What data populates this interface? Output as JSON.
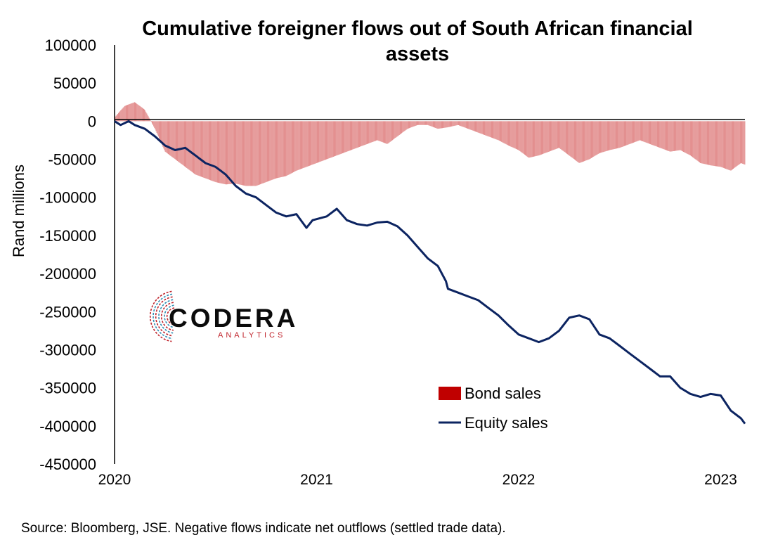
{
  "colors": {
    "bond": "#c00000",
    "equity": "#0c2461",
    "axis": "#000000",
    "logo_red": "#c0232b",
    "logo_blue": "#2f8fb5"
  },
  "logo": {
    "name": "CODERA",
    "tagline": "ANALYTICS"
  },
  "source_note": "Source: Bloomberg, JSE. Negative flows indicate net outflows (settled trade data).",
  "chart_data": {
    "type": "line",
    "title": "Cumulative foreigner flows out of South African financial assets",
    "ylabel": "Rand millions",
    "xlabel": "",
    "ylim": [
      -450000,
      100000
    ],
    "yticks": [
      100000,
      50000,
      0,
      -50000,
      -100000,
      -150000,
      -200000,
      -250000,
      -300000,
      -350000,
      -400000,
      -450000
    ],
    "xlim": [
      2020.0,
      2023.12
    ],
    "xticks": [
      {
        "value": 2020,
        "label": "2020"
      },
      {
        "value": 2021,
        "label": "2021"
      },
      {
        "value": 2022,
        "label": "2022"
      },
      {
        "value": 2023,
        "label": "2023"
      }
    ],
    "legend_position": "bottom-right",
    "series": [
      {
        "name": "Bond sales",
        "kind": "bar",
        "x": [
          2020.0,
          2020.05,
          2020.1,
          2020.15,
          2020.2,
          2020.25,
          2020.3,
          2020.35,
          2020.4,
          2020.45,
          2020.5,
          2020.55,
          2020.6,
          2020.65,
          2020.7,
          2020.75,
          2020.8,
          2020.85,
          2020.9,
          2020.95,
          2021.0,
          2021.05,
          2021.1,
          2021.15,
          2021.2,
          2021.25,
          2021.3,
          2021.35,
          2021.4,
          2021.45,
          2021.5,
          2021.55,
          2021.6,
          2021.65,
          2021.7,
          2021.75,
          2021.8,
          2021.85,
          2021.9,
          2021.95,
          2022.0,
          2022.05,
          2022.1,
          2022.15,
          2022.2,
          2022.25,
          2022.3,
          2022.35,
          2022.4,
          2022.45,
          2022.5,
          2022.55,
          2022.6,
          2022.65,
          2022.7,
          2022.75,
          2022.8,
          2022.85,
          2022.9,
          2022.95,
          2023.0,
          2023.05,
          2023.1,
          2023.12
        ],
        "values": [
          5000,
          20000,
          25000,
          15000,
          -10000,
          -40000,
          -50000,
          -60000,
          -70000,
          -75000,
          -80000,
          -83000,
          -82000,
          -85000,
          -85000,
          -80000,
          -75000,
          -72000,
          -65000,
          -60000,
          -55000,
          -50000,
          -45000,
          -40000,
          -35000,
          -30000,
          -25000,
          -30000,
          -20000,
          -10000,
          -5000,
          -5000,
          -10000,
          -8000,
          -5000,
          -10000,
          -15000,
          -20000,
          -25000,
          -32000,
          -38000,
          -48000,
          -45000,
          -40000,
          -35000,
          -45000,
          -55000,
          -50000,
          -42000,
          -38000,
          -35000,
          -30000,
          -25000,
          -30000,
          -35000,
          -40000,
          -38000,
          -45000,
          -55000,
          -58000,
          -60000,
          -65000,
          -55000,
          -57000
        ]
      },
      {
        "name": "Equity sales",
        "kind": "line",
        "x": [
          2020.0,
          2020.03,
          2020.07,
          2020.1,
          2020.15,
          2020.2,
          2020.25,
          2020.3,
          2020.35,
          2020.4,
          2020.45,
          2020.5,
          2020.55,
          2020.6,
          2020.65,
          2020.7,
          2020.75,
          2020.8,
          2020.85,
          2020.9,
          2020.95,
          2020.98,
          2021.05,
          2021.1,
          2021.15,
          2021.2,
          2021.25,
          2021.3,
          2021.35,
          2021.4,
          2021.45,
          2021.5,
          2021.55,
          2021.6,
          2021.64,
          2021.65,
          2021.7,
          2021.75,
          2021.8,
          2021.85,
          2021.9,
          2021.95,
          2022.0,
          2022.05,
          2022.1,
          2022.15,
          2022.2,
          2022.25,
          2022.3,
          2022.35,
          2022.4,
          2022.45,
          2022.5,
          2022.55,
          2022.6,
          2022.65,
          2022.7,
          2022.75,
          2022.8,
          2022.85,
          2022.9,
          2022.95,
          2023.0,
          2023.05,
          2023.1,
          2023.12
        ],
        "values": [
          0,
          -5000,
          0,
          -5000,
          -10000,
          -20000,
          -32000,
          -38000,
          -35000,
          -45000,
          -55000,
          -60000,
          -70000,
          -85000,
          -95000,
          -100000,
          -110000,
          -120000,
          -125000,
          -122000,
          -140000,
          -130000,
          -125000,
          -115000,
          -130000,
          -135000,
          -137000,
          -133000,
          -132000,
          -138000,
          -150000,
          -165000,
          -180000,
          -190000,
          -210000,
          -220000,
          -225000,
          -230000,
          -235000,
          -245000,
          -255000,
          -268000,
          -280000,
          -285000,
          -290000,
          -285000,
          -275000,
          -258000,
          -255000,
          -260000,
          -280000,
          -285000,
          -295000,
          -305000,
          -315000,
          -325000,
          -335000,
          -335000,
          -350000,
          -358000,
          -362000,
          -358000,
          -360000,
          -380000,
          -390000,
          -397000
        ]
      }
    ]
  }
}
